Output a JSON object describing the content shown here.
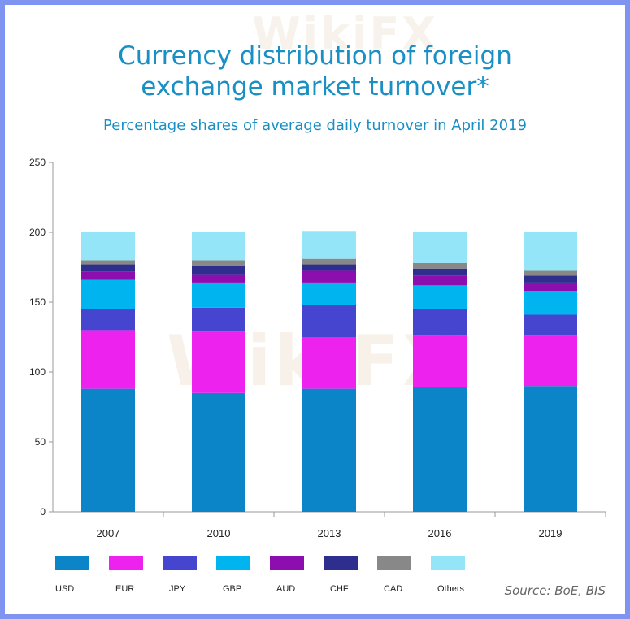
{
  "watermark": "WikiFX",
  "chart_data": {
    "type": "bar",
    "stacked": true,
    "title_lines": [
      "Currency distribution of foreign",
      "exchange market turnover*"
    ],
    "subtitle": "Percentage shares of average daily turnover in April 2019",
    "categories": [
      "2007",
      "2010",
      "2013",
      "2016",
      "2019"
    ],
    "ylim": [
      0,
      250
    ],
    "yticks": [
      0,
      50,
      100,
      150,
      200,
      250
    ],
    "grid": false,
    "legend_position": "bottom",
    "series": [
      {
        "name": "USD",
        "color": "#0b84c8",
        "values": [
          88,
          85,
          88,
          89,
          90
        ]
      },
      {
        "name": "EUR",
        "color": "#ee22ee",
        "values": [
          42,
          44,
          37,
          37,
          36
        ]
      },
      {
        "name": "JPY",
        "color": "#4545cf",
        "values": [
          15,
          17,
          23,
          19,
          15
        ]
      },
      {
        "name": "GBP",
        "color": "#00b4f0",
        "values": [
          21,
          18,
          16,
          17,
          17
        ]
      },
      {
        "name": "AUD",
        "color": "#8c0eae",
        "values": [
          6,
          6,
          9,
          7,
          6
        ]
      },
      {
        "name": "CHF",
        "color": "#2e2e8e",
        "values": [
          5,
          6,
          4,
          5,
          5
        ]
      },
      {
        "name": "CAD",
        "color": "#888888",
        "values": [
          3,
          4,
          4,
          4,
          4
        ]
      },
      {
        "name": "Others",
        "color": "#93e5f7",
        "values": [
          20,
          20,
          20,
          22,
          27
        ]
      }
    ],
    "source": "Source: BoE, BIS"
  }
}
